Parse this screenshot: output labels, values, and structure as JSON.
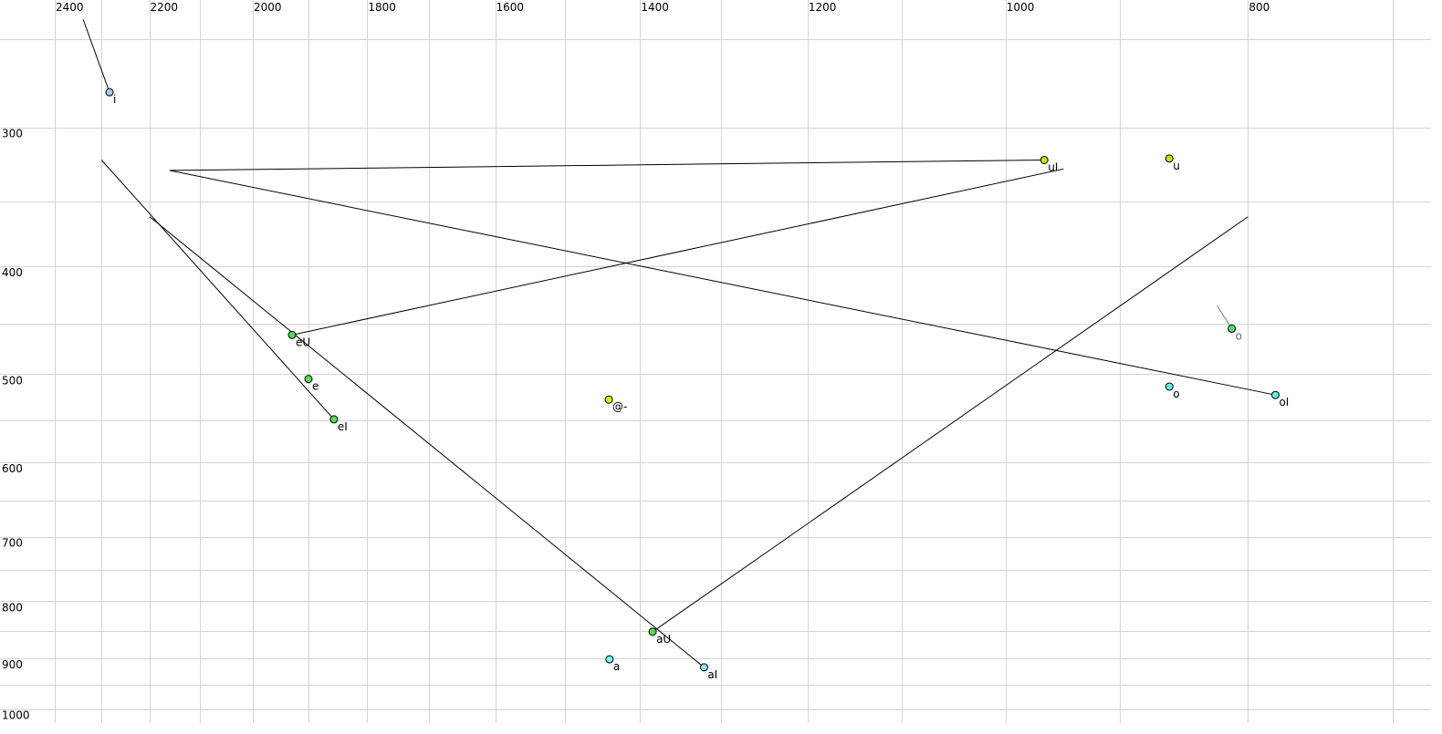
{
  "chart_data": {
    "type": "scatter",
    "title": "",
    "xlabel": "",
    "ylabel": "",
    "x_scale": "log",
    "y_scale": "log",
    "x_reversed": true,
    "xlim": [
      2400,
      700
    ],
    "ylim": [
      250,
      1000
    ],
    "grid": true,
    "x_ticks": [
      2400,
      2200,
      2000,
      1800,
      1600,
      1400,
      1200,
      1000,
      800
    ],
    "y_ticks": [
      300,
      400,
      500,
      600,
      700,
      800,
      900,
      1000
    ],
    "x_gridlines": [
      2400,
      2300,
      2200,
      2100,
      2000,
      1900,
      1800,
      1700,
      1600,
      1500,
      1400,
      1300,
      1200,
      1100,
      1000,
      900,
      800,
      700
    ],
    "y_gridlines": [
      250,
      300,
      350,
      400,
      450,
      500,
      550,
      600,
      650,
      700,
      750,
      800,
      850,
      900,
      950,
      1000
    ],
    "points": [
      {
        "label": "i",
        "f2": 2282,
        "f1": 279,
        "color": "#a8c8ff"
      },
      {
        "label": "uI",
        "f2": 965,
        "f1": 321,
        "color": "#b4f000"
      },
      {
        "label": "u",
        "f2": 860,
        "f1": 320,
        "color": "#b4f000"
      },
      {
        "label": "o",
        "f2": 812,
        "f1": 455,
        "color": "#50e080",
        "label_color": "#666680"
      },
      {
        "label": "o",
        "f2": 860,
        "f1": 513,
        "color": "#60f0e0"
      },
      {
        "label": "oI",
        "f2": 780,
        "f1": 522,
        "color": "#60f0e0"
      },
      {
        "label": "eU",
        "f2": 1929,
        "f1": 461,
        "color": "#50e050"
      },
      {
        "label": "e",
        "f2": 1900,
        "f1": 505,
        "color": "#50e050"
      },
      {
        "label": "eI",
        "f2": 1856,
        "f1": 549,
        "color": "#50e050"
      },
      {
        "label": "@-",
        "f2": 1441,
        "f1": 527,
        "color": "#e0f000"
      },
      {
        "label": "aU",
        "f2": 1384,
        "f1": 852,
        "color": "#50e050"
      },
      {
        "label": "a",
        "f2": 1440,
        "f1": 902,
        "color": "#80f0f0"
      },
      {
        "label": "aI",
        "f2": 1320,
        "f1": 917,
        "color": "#80f0f0"
      }
    ],
    "segments": [
      {
        "from": [
          2338,
          240
        ],
        "to": [
          2282,
          279
        ],
        "color": "#000000"
      },
      {
        "from": [
          2159,
          328
        ],
        "to": [
          965,
          321
        ],
        "color": "#000000"
      },
      {
        "from": [
          2159,
          328
        ],
        "to": [
          780,
          522
        ],
        "color": "#000000"
      },
      {
        "from": [
          1929,
          461
        ],
        "to": [
          948,
          327
        ],
        "color": "#000000"
      },
      {
        "from": [
          2299,
          321
        ],
        "to": [
          1856,
          549
        ],
        "color": "#000000"
      },
      {
        "from": [
          2199,
          361
        ],
        "to": [
          1320,
          917
        ],
        "color": "#000000"
      },
      {
        "from": [
          1384,
          852
        ],
        "to": [
          800,
          361
        ],
        "color": "#000000"
      },
      {
        "from": [
          823,
          434
        ],
        "to": [
          812,
          455
        ],
        "color": "#777777"
      }
    ]
  }
}
